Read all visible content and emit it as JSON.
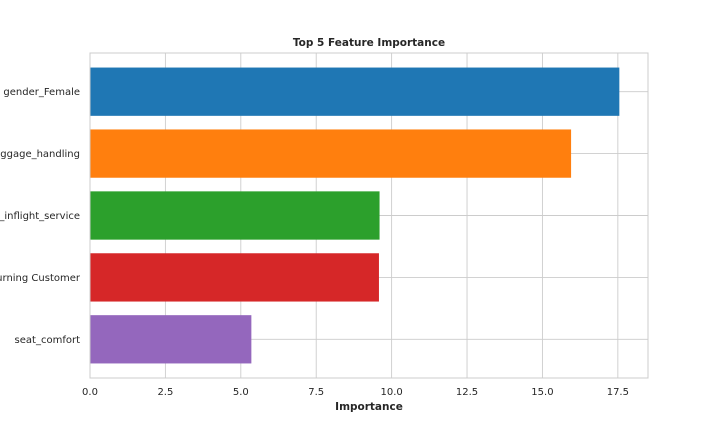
{
  "chart_data": {
    "type": "bar",
    "orientation": "horizontal",
    "title": "Top 5 Feature Importance",
    "xlabel": "Importance",
    "ylabel": "",
    "categories": [
      "gender_Female",
      "baggage_handling",
      "_inflight_service",
      "Returning Customer",
      "seat_comfort"
    ],
    "values": [
      17.55,
      15.95,
      9.6,
      9.58,
      5.35
    ],
    "colors": [
      "#1f77b4",
      "#ff7f0e",
      "#2ca02c",
      "#d62728",
      "#9467bd"
    ],
    "xlim": [
      0,
      18.5
    ],
    "xticks": [
      0,
      2.5,
      5,
      7.5,
      10,
      12.5,
      15,
      17.5
    ],
    "xtick_labels": [
      "0.0",
      "2.5",
      "5.0",
      "7.5",
      "10.0",
      "12.5",
      "15.0",
      "17.5"
    ],
    "grid": true,
    "legend": "none"
  }
}
